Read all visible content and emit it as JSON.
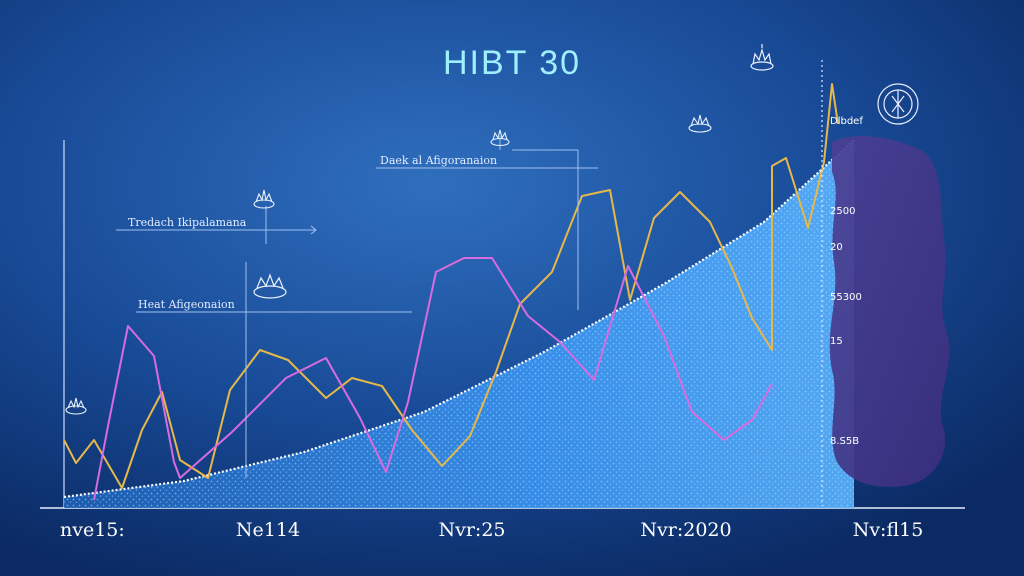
{
  "chart_data": {
    "type": "line",
    "title": "HIBT 30",
    "categories": [
      "nve15:",
      "Ne114",
      "Nvr:25",
      "Nvr:2020",
      "Nv:fl15"
    ],
    "series": [
      {
        "color": "#e6b84a",
        "points": [
          [
            0,
            440
          ],
          [
            12,
            463
          ],
          [
            30,
            440
          ],
          [
            58,
            488
          ],
          [
            78,
            430
          ],
          [
            98,
            392
          ],
          [
            116,
            460
          ],
          [
            144,
            478
          ],
          [
            166,
            390
          ],
          [
            196,
            350
          ],
          [
            224,
            360
          ],
          [
            262,
            398
          ],
          [
            288,
            378
          ],
          [
            318,
            386
          ],
          [
            348,
            430
          ],
          [
            378,
            466
          ],
          [
            406,
            436
          ],
          [
            432,
            372
          ],
          [
            456,
            304
          ],
          [
            488,
            272
          ],
          [
            518,
            196
          ],
          [
            546,
            190
          ],
          [
            566,
            300
          ],
          [
            590,
            218
          ],
          [
            616,
            192
          ],
          [
            646,
            222
          ],
          [
            668,
            268
          ],
          [
            688,
            318
          ],
          [
            708,
            350
          ],
          [
            708,
            166
          ],
          [
            722,
            158
          ],
          [
            744,
            228
          ],
          [
            760,
            162
          ],
          [
            768,
            84
          ],
          [
            774,
            124
          ]
        ]
      },
      {
        "color": "#d96be0",
        "points": [
          [
            30,
            500
          ],
          [
            44,
            426
          ],
          [
            64,
            326
          ],
          [
            90,
            356
          ],
          [
            110,
            462
          ],
          [
            116,
            478
          ],
          [
            168,
            432
          ],
          [
            222,
            378
          ],
          [
            262,
            358
          ],
          [
            296,
            418
          ],
          [
            322,
            472
          ],
          [
            344,
            402
          ],
          [
            372,
            272
          ],
          [
            400,
            258
          ],
          [
            428,
            258
          ],
          [
            464,
            316
          ],
          [
            496,
            342
          ],
          [
            530,
            380
          ],
          [
            564,
            266
          ],
          [
            600,
            336
          ],
          [
            628,
            412
          ],
          [
            660,
            440
          ],
          [
            688,
            420
          ],
          [
            708,
            384
          ]
        ]
      }
    ],
    "trend": {
      "color": "#ffffff",
      "area_color": "#3f9cff",
      "points": [
        [
          0,
          497
        ],
        [
          120,
          481
        ],
        [
          240,
          452
        ],
        [
          360,
          412
        ],
        [
          480,
          352
        ],
        [
          600,
          284
        ],
        [
          700,
          222
        ],
        [
          790,
          140
        ]
      ]
    },
    "annotations": [
      {
        "label": "Tredach Ikipalamana"
      },
      {
        "label": "Heat Afigeonaion"
      },
      {
        "label": "Daek al Afigoranaion"
      }
    ],
    "side_panel": {
      "header": "Dlbdef",
      "values": [
        "2500",
        "20",
        "55300",
        "15",
        "8.S5B"
      ]
    }
  }
}
